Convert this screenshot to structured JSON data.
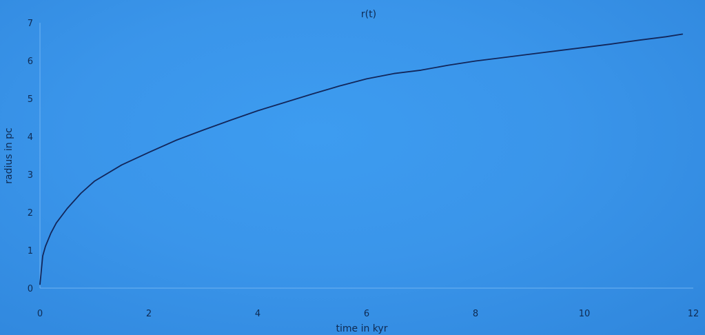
{
  "chart_data": {
    "type": "line",
    "title": "r(t)",
    "xlabel": "time in kyr",
    "ylabel": "radius in pc",
    "xlim": [
      0,
      12
    ],
    "ylim": [
      0,
      7
    ],
    "xticks": [
      "0",
      "2",
      "4",
      "6",
      "8",
      "10",
      "12"
    ],
    "yticks": [
      "0",
      "1",
      "2",
      "3",
      "4",
      "5",
      "6",
      "7"
    ],
    "grid": false,
    "legend": "none",
    "colors": {
      "line": "#12265a",
      "axis": "#6fb3f2"
    },
    "series": [
      {
        "x": [
          0,
          0.05,
          0.1,
          0.2,
          0.3,
          0.5,
          0.75,
          1,
          1.5,
          2,
          2.5,
          3,
          3.5,
          4,
          4.5,
          5,
          5.5,
          6,
          6.5,
          7,
          7.5,
          8,
          8.5,
          9,
          9.5,
          10,
          10.5,
          11,
          11.5,
          11.8
        ],
        "y": [
          0.1,
          0.85,
          1.1,
          1.45,
          1.72,
          2.1,
          2.5,
          2.82,
          3.25,
          3.58,
          3.9,
          4.17,
          4.43,
          4.68,
          4.9,
          5.12,
          5.33,
          5.52,
          5.66,
          5.75,
          5.88,
          5.99,
          6.08,
          6.17,
          6.26,
          6.35,
          6.44,
          6.54,
          6.63,
          6.7
        ]
      }
    ]
  }
}
